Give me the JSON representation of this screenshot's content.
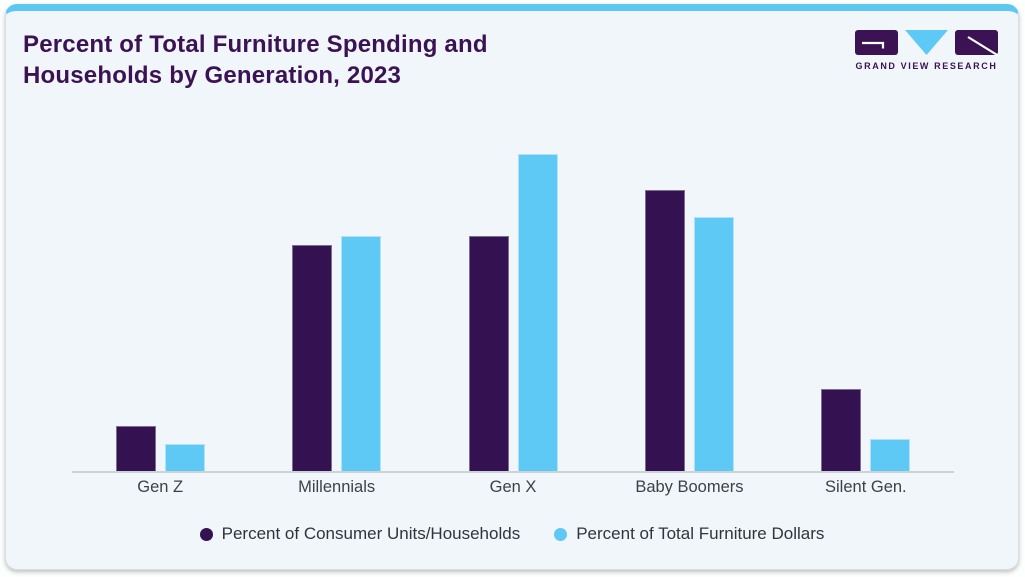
{
  "header": {
    "title_line1": "Percent of Total Furniture Spending and",
    "title_line2": "Households by Generation, 2023"
  },
  "logo": {
    "text": "GRAND VIEW RESEARCH",
    "icon": "gvr-logo-icon"
  },
  "colors": {
    "accent_top_bar": "#5bc8f1",
    "card_background": "#f0f6fa",
    "title_text": "#3b1254",
    "axis_line": "#cdd2d7",
    "category_label_text": "#3f3f49",
    "legend_text": "#33333d",
    "series_households": "#341150",
    "series_dollars": "#5dc9f4"
  },
  "chart_data": {
    "type": "bar",
    "title": "Percent of Total Furniture Spending and Households by Generation, 2023",
    "categories": [
      "Gen Z",
      "Millennials",
      "Gen X",
      "Baby Boomers",
      "Silent Gen."
    ],
    "series": [
      {
        "name": "Percent of Consumer Units/Households",
        "color": "#341150",
        "values": [
          5,
          25,
          26,
          31,
          9
        ]
      },
      {
        "name": "Percent of Total Furniture Dollars",
        "color": "#5dc9f4",
        "values": [
          3,
          26,
          35,
          28,
          3.5
        ]
      }
    ],
    "xlabel": "",
    "ylabel": "",
    "ylim": [
      0,
      36
    ],
    "grid": false,
    "y_axis_visible": false,
    "legend_position": "bottom"
  }
}
